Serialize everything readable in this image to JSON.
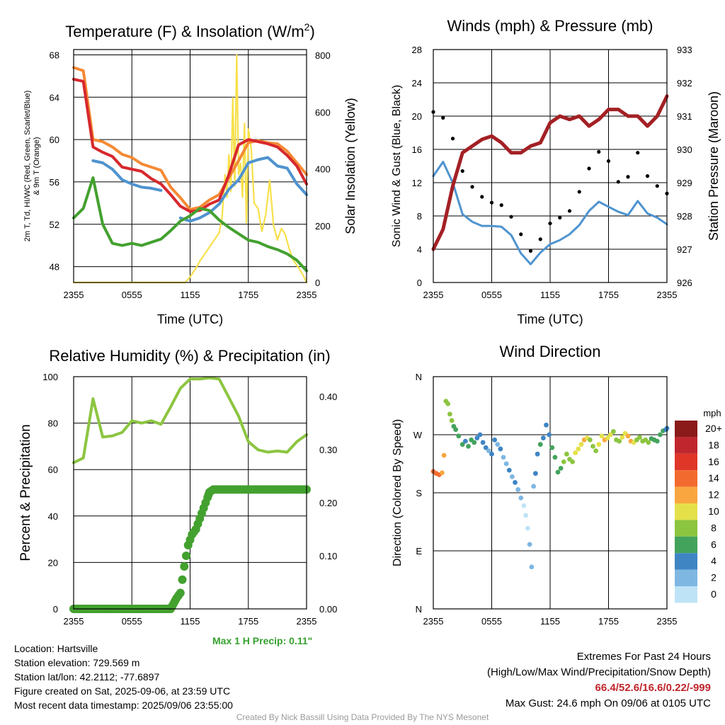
{
  "time_ticks": [
    "2355",
    "0555",
    "1155",
    "1755",
    "2355"
  ],
  "chart_data": [
    {
      "id": "temperature",
      "type": "line",
      "title": "Temperature (F) & Insolation (W/m²)",
      "title_main": "Temperature (F) & Insolation (W/m",
      "title_sup": "2",
      "title_end": ")",
      "xlabel": "Time (UTC)",
      "ylabel_line1": "2m T, Td, HI/WC (Red, Green, Scarlet/Blue)",
      "ylabel_line2": "& 9m T (Orange)",
      "y2label": "Solar Insolation (Yellow)",
      "ylim": [
        46.5,
        68.5
      ],
      "y2lim": [
        0,
        820
      ],
      "yticks": [
        48,
        52,
        56,
        60,
        64,
        68
      ],
      "y2ticks": [
        0,
        200,
        400,
        600,
        800
      ],
      "x_hours": [
        0,
        1,
        2,
        3,
        4,
        5,
        6,
        7,
        8,
        9,
        10,
        11,
        12,
        13,
        14,
        15,
        16,
        17,
        18,
        19,
        20,
        21,
        22,
        23,
        24
      ],
      "series": [
        {
          "key": "t9m",
          "color": "#f58a34",
          "values": [
            66.8,
            66.5,
            60,
            59.8,
            59.3,
            58.6,
            58.3,
            57.7,
            57.4,
            57.1,
            55.5,
            54.5,
            53.4,
            53.6,
            54.3,
            54.8,
            56.4,
            58,
            59.7,
            59.9,
            59.7,
            59.6,
            58.9,
            57.8,
            56.7
          ]
        },
        {
          "key": "t2m",
          "color": "#d7282d",
          "values": [
            65.7,
            65.5,
            59.3,
            58.8,
            58.4,
            57.4,
            57.2,
            57,
            56.3,
            55.8,
            54.8,
            53.7,
            53.2,
            53.3,
            53.9,
            54.3,
            56.7,
            59.5,
            60,
            59.8,
            59.6,
            59.3,
            58.5,
            57.5,
            55.8
          ]
        },
        {
          "key": "hiwc",
          "color": "#4f93cf",
          "values": [
            null,
            null,
            58,
            57.8,
            57.2,
            56.2,
            55.8,
            55.5,
            55.4,
            55.2,
            null,
            52.6,
            52.3,
            52.6,
            53.1,
            53.9,
            55.3,
            56.2,
            57.8,
            58.1,
            58.3,
            57.5,
            57.3,
            55.8,
            54.8
          ]
        },
        {
          "key": "td",
          "color": "#43a12f",
          "values": [
            52.6,
            53.5,
            56.4,
            52,
            50.2,
            50,
            50.2,
            50,
            50.3,
            50.6,
            51.4,
            52.3,
            52.8,
            53.5,
            53.3,
            52.4,
            51.7,
            51.1,
            50.5,
            50.3,
            49.9,
            49.6,
            49.2,
            48.6,
            47.6
          ]
        }
      ],
      "solar": {
        "color": "#f7e04a",
        "x": [
          0,
          11.5,
          12,
          12.5,
          13,
          13.5,
          14,
          14.5,
          15,
          15.3,
          15.6,
          15.8,
          16,
          16.2,
          16.4,
          16.6,
          16.8,
          17,
          17.2,
          17.4,
          17.6,
          17.8,
          18,
          18.3,
          18.6,
          19,
          19.4,
          19.8,
          20.2,
          20.6,
          21,
          21.4,
          21.8,
          22.2,
          22.6,
          23,
          23.4,
          23.8,
          24
        ],
        "values": [
          0,
          0,
          20,
          45,
          75,
          100,
          125,
          150,
          175,
          230,
          380,
          300,
          450,
          320,
          650,
          340,
          800,
          380,
          420,
          300,
          560,
          210,
          540,
          470,
          280,
          260,
          180,
          240,
          360,
          200,
          150,
          190,
          170,
          120,
          80,
          60,
          40,
          15,
          0
        ]
      }
    },
    {
      "id": "winds",
      "type": "line",
      "title": "Winds (mph) & Pressure (mb)",
      "xlabel": "Time (UTC)",
      "ylabel": "Sonic Wind & Gust (Blue, Black)",
      "y2label": "Station Pressure (Maroon)",
      "ylim": [
        0,
        28
      ],
      "y2lim": [
        926,
        933
      ],
      "yticks": [
        0,
        4,
        8,
        12,
        16,
        20,
        24,
        28
      ],
      "y2ticks": [
        926,
        927,
        928,
        929,
        930,
        931,
        932,
        933
      ],
      "x_hours": [
        0,
        1,
        2,
        3,
        4,
        5,
        6,
        7,
        8,
        9,
        10,
        11,
        12,
        13,
        14,
        15,
        16,
        17,
        18,
        19,
        20,
        21,
        22,
        23,
        24
      ],
      "wind": {
        "color": "#4f93cf",
        "name": "Sonic Wind",
        "values": [
          12.8,
          14.5,
          12,
          8.2,
          7.3,
          6.8,
          6.8,
          6.7,
          5.7,
          3.5,
          2.2,
          3.6,
          4.6,
          5.1,
          5.8,
          6.9,
          8.6,
          9.7,
          9.1,
          8.5,
          8.1,
          9.8,
          8.3,
          7.8,
          7.0
        ]
      },
      "gust": {
        "color": "#000000",
        "name": "Gust",
        "values": [
          20.5,
          19.8,
          17.3,
          13.4,
          11.5,
          10.3,
          9.6,
          9.3,
          7.9,
          5.8,
          3.8,
          5.2,
          7.1,
          7.8,
          8.6,
          10.9,
          13.7,
          15.7,
          14.6,
          12.1,
          12.7,
          15.6,
          12.8,
          11.6,
          10.7
        ]
      },
      "pressure": {
        "color": "#a32024",
        "name": "Station Pressure",
        "values": [
          927.0,
          927.6,
          928.9,
          929.9,
          930.1,
          930.3,
          930.4,
          930.2,
          929.9,
          929.9,
          930.1,
          930.2,
          930.8,
          931.0,
          930.9,
          931.0,
          930.7,
          930.9,
          931.2,
          931.2,
          931.0,
          931.0,
          930.7,
          931.0,
          931.6
        ]
      }
    },
    {
      "id": "humidity",
      "type": "line",
      "title": "Relative Humidity (%) & Precipitation (in)",
      "ylabel": "Percent & Precipitation",
      "ylim": [
        0,
        100
      ],
      "y2lim": [
        0,
        0.4375
      ],
      "yticks": [
        0,
        20,
        40,
        60,
        80,
        100
      ],
      "y2ticks": [
        "0.00",
        "0.10",
        "0.20",
        "0.30",
        "0.40"
      ],
      "x_hours": [
        0,
        1,
        2,
        3,
        4,
        5,
        6,
        7,
        8,
        9,
        10,
        11,
        12,
        13,
        14,
        15,
        16,
        17,
        18,
        19,
        20,
        21,
        22,
        23,
        24
      ],
      "rh": {
        "color": "#8cc540",
        "name": "Relative Humidity",
        "values": [
          63,
          65,
          90.5,
          74,
          74.5,
          76,
          81,
          80,
          81,
          79.5,
          87,
          95,
          99,
          99,
          99.5,
          99,
          91,
          83,
          72,
          68.5,
          67.5,
          68,
          67.5,
          72,
          75
        ]
      },
      "precip": {
        "color": "#43a12f",
        "name": "Precipitation",
        "x": [
          0,
          10,
          10.3,
          10.6,
          11,
          11.4,
          11.8,
          12.2,
          12.6,
          13,
          13.4,
          13.8,
          14,
          14.4,
          24
        ],
        "values": [
          0,
          0,
          0.01,
          0.02,
          0.03,
          0.08,
          0.12,
          0.14,
          0.15,
          0.17,
          0.19,
          0.21,
          0.22,
          0.225,
          0.225
        ]
      }
    },
    {
      "id": "direction",
      "type": "scatter",
      "title": "Wind Direction",
      "ylabel": "Direction (Colored By Speed)",
      "yticks": [
        "N",
        "E",
        "S",
        "W",
        "N"
      ],
      "ylim": [
        0,
        360
      ],
      "legend_title": "mph",
      "legend_labels": [
        "20+",
        "18",
        "16",
        "14",
        "12",
        "10",
        "8",
        "6",
        "4",
        "2",
        "0"
      ],
      "legend_colors": [
        "#8b1a1a",
        "#c0262d",
        "#e03628",
        "#f26a2e",
        "#f9a640",
        "#e4e04a",
        "#8cc540",
        "#43a35c",
        "#3f85c4",
        "#7eb7e2",
        "#bfe3f6"
      ],
      "x": [
        0,
        0.3,
        0.6,
        0.9,
        1.1,
        1.3,
        1.5,
        1.7,
        1.9,
        2.1,
        2.3,
        2.6,
        3,
        3.3,
        3.6,
        3.9,
        4.2,
        4.5,
        4.8,
        5.1,
        5.4,
        5.7,
        6,
        6.3,
        6.6,
        6.9,
        7.2,
        7.5,
        7.8,
        8.1,
        8.4,
        8.7,
        9,
        9.3,
        9.5,
        9.7,
        9.9,
        10.1,
        10.3,
        10.5,
        10.7,
        11,
        11.3,
        11.6,
        11.9,
        12.2,
        12.5,
        12.8,
        13.1,
        13.4,
        13.7,
        14,
        14.3,
        14.6,
        14.9,
        15.2,
        15.5,
        15.8,
        16.1,
        16.4,
        16.7,
        17,
        17.3,
        17.6,
        17.9,
        18.2,
        18.5,
        18.8,
        19.1,
        19.4,
        19.7,
        20,
        20.3,
        20.6,
        20.9,
        21.2,
        21.5,
        21.8,
        22.1,
        22.4,
        22.7,
        23,
        23.3,
        23.6,
        23.9,
        24
      ],
      "values": [
        213,
        210,
        208,
        211,
        238,
        322,
        318,
        302,
        292,
        283,
        278,
        268,
        255,
        260,
        252,
        262,
        258,
        265,
        270,
        258,
        250,
        245,
        240,
        262,
        255,
        248,
        235,
        225,
        215,
        205,
        196,
        185,
        172,
        160,
        145,
        125,
        100,
        65,
        190,
        210,
        240,
        255,
        265,
        285,
        270,
        250,
        235,
        212,
        218,
        228,
        240,
        232,
        228,
        242,
        248,
        255,
        262,
        265,
        262,
        252,
        245,
        255,
        268,
        262,
        265,
        270,
        275,
        262,
        260,
        266,
        272,
        268,
        260,
        258,
        262,
        266,
        260,
        262,
        258,
        264,
        262,
        260,
        270,
        276,
        278,
        280
      ],
      "speeds": [
        14,
        14,
        15,
        13,
        12,
        8,
        9,
        8,
        8,
        6,
        6,
        7,
        6,
        5,
        6,
        6,
        7,
        5,
        4,
        5,
        4,
        3,
        4,
        5,
        3,
        4,
        3,
        2,
        4,
        3,
        4,
        3,
        2,
        1,
        1,
        1,
        2,
        2,
        3,
        4,
        5,
        6,
        5,
        4,
        5,
        6,
        7,
        6,
        7,
        8,
        9,
        8,
        9,
        10,
        10,
        11,
        12,
        10,
        9,
        8,
        9,
        10,
        11,
        12,
        11,
        10,
        9,
        8,
        9,
        10,
        11,
        12,
        13,
        10,
        9,
        8,
        8,
        9,
        8,
        7,
        6,
        7,
        6,
        6,
        5,
        5
      ]
    }
  ],
  "max_precip_label": "Max 1 H Precip: 0.11\"",
  "info": {
    "location": "Location: Hartsville",
    "elevation": "Station elevation: 729.569 m",
    "latlon": "Station lat/lon: 42.2112; -77.6897",
    "created": "Figure created on Sat, 2025-09-06, at 23:59 UTC",
    "recent": "Most recent data timestamp: 2025/09/06 23:55:00"
  },
  "extremes": {
    "title": "Extremes For Past 24 Hours",
    "subtitle": "(High/Low/Max Wind/Precipitation/Snow Depth)",
    "values": "66.4/52.6/16.6/0.22/-999",
    "max_gust": "Max Gust: 24.6 mph On 09/06 at 0105 UTC"
  },
  "credit": "Created By Nick Bassill Using Data Provided By The NYS Mesonet"
}
